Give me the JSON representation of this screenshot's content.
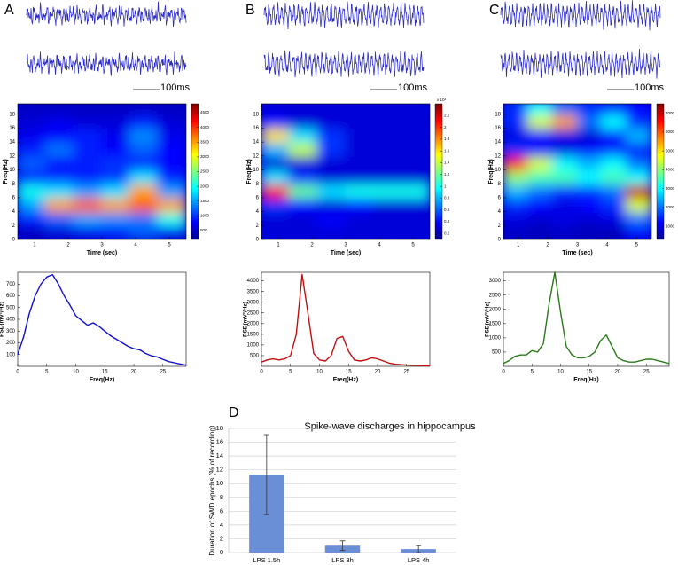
{
  "panels": [
    {
      "label": "A",
      "scale_bar": "100ms"
    },
    {
      "label": "B",
      "scale_bar": "100ms"
    },
    {
      "label": "C",
      "scale_bar": "100ms"
    },
    {
      "label": "D"
    }
  ],
  "chart_data": [
    {
      "type": "heatmap",
      "x_label": "Time (sec)",
      "y_label": "Freq(Hz)",
      "x": [
        0.92,
        1.75,
        2.58,
        3.42,
        4.25,
        5.08
      ],
      "y": [
        1,
        3,
        5,
        7,
        9,
        11,
        13,
        15,
        17,
        19
      ],
      "values": [
        [
          500,
          600,
          700,
          900,
          1200,
          700
        ],
        [
          900,
          1200,
          1500,
          1400,
          1300,
          2000
        ],
        [
          1500,
          3500,
          3800,
          3500,
          3800,
          3500
        ],
        [
          2000,
          1800,
          1500,
          1800,
          3500,
          1500
        ],
        [
          900,
          1000,
          900,
          1000,
          1800,
          900
        ],
        [
          1200,
          800,
          900,
          1000,
          900,
          800
        ],
        [
          900,
          1300,
          900,
          800,
          1200,
          800
        ],
        [
          700,
          800,
          900,
          700,
          1400,
          700
        ],
        [
          600,
          700,
          600,
          600,
          900,
          600
        ],
        [
          500,
          500,
          500,
          500,
          500,
          500
        ]
      ],
      "xlim": [
        0.5,
        5.5
      ],
      "ylim": [
        0,
        19.5
      ],
      "xticks": [
        1,
        2,
        3,
        4,
        5
      ],
      "yticks": [
        0,
        2,
        4,
        6,
        8,
        10,
        12,
        14,
        16,
        18
      ],
      "clim": [
        200,
        4800
      ],
      "cticks": [
        500,
        1000,
        1500,
        2000,
        2500,
        3000,
        3500,
        4000,
        4500
      ]
    },
    {
      "type": "line",
      "x_label": "Freq(Hz)",
      "y_label": "PSD(mV²/Hz)",
      "x": [
        0,
        1,
        2,
        3,
        4,
        5,
        6,
        7,
        8,
        9,
        10,
        11,
        12,
        13,
        14,
        15,
        16,
        17,
        18,
        19,
        20,
        21,
        22,
        23,
        24,
        25,
        26,
        27,
        28,
        29
      ],
      "series": [
        {
          "color": "#1010d0",
          "values": [
            100,
            250,
            450,
            600,
            700,
            760,
            780,
            700,
            600,
            520,
            430,
            390,
            350,
            370,
            340,
            300,
            260,
            230,
            200,
            170,
            150,
            140,
            110,
            90,
            80,
            60,
            40,
            30,
            20,
            10
          ]
        }
      ],
      "xlim": [
        0,
        29
      ],
      "ylim": [
        0,
        800
      ],
      "xticks": [
        0,
        5,
        10,
        15,
        20,
        25
      ],
      "yticks": [
        100,
        200,
        300,
        400,
        500,
        600,
        700
      ]
    },
    {
      "type": "heatmap",
      "x_label": "Time (sec)",
      "y_label": "Freq(Hz)",
      "x": [
        0.92,
        1.75,
        2.58,
        3.42,
        4.25,
        5.08
      ],
      "y": [
        1,
        3,
        5,
        7,
        9,
        11,
        13,
        15,
        17,
        19
      ],
      "values": [
        [
          0.3,
          0.3,
          0.3,
          0.3,
          0.3,
          0.3
        ],
        [
          0.3,
          0.3,
          0.4,
          0.3,
          0.3,
          0.3
        ],
        [
          0.5,
          0.4,
          0.3,
          0.4,
          0.3,
          0.3
        ],
        [
          2.1,
          1.2,
          0.9,
          1.0,
          1.0,
          1.0
        ],
        [
          0.9,
          0.5,
          0.3,
          0.3,
          0.3,
          0.3
        ],
        [
          0.3,
          0.3,
          0.3,
          0.3,
          0.3,
          0.3
        ],
        [
          0.8,
          1.4,
          0.5,
          0.3,
          0.3,
          0.3
        ],
        [
          1.6,
          0.9,
          0.5,
          0.3,
          0.3,
          0.3
        ],
        [
          0.4,
          0.3,
          0.3,
          0.3,
          0.3,
          0.3
        ],
        [
          0.3,
          0.3,
          0.3,
          0.3,
          0.3,
          0.3
        ]
      ],
      "xlim": [
        0.5,
        5.5
      ],
      "ylim": [
        0,
        19.5
      ],
      "xticks": [
        1,
        2,
        3,
        4,
        5
      ],
      "yticks": [
        0,
        2,
        4,
        6,
        8,
        10,
        12,
        14,
        16,
        18
      ],
      "clim": [
        0.1,
        2.4
      ],
      "cticks": [
        0.2,
        0.4,
        0.6,
        0.8,
        1,
        1.2,
        1.4,
        1.6,
        1.8,
        2,
        2.2
      ],
      "colorbar_label": "x 10⁴"
    },
    {
      "type": "line",
      "x_label": "Freq(Hz)",
      "y_label": "PSD(mV²/Hz)",
      "x": [
        0,
        1,
        2,
        3,
        4,
        5,
        6,
        7,
        8,
        9,
        10,
        11,
        12,
        13,
        14,
        15,
        16,
        17,
        18,
        19,
        20,
        21,
        22,
        23,
        24,
        25,
        26,
        27,
        28,
        29
      ],
      "series": [
        {
          "color": "#c01010",
          "values": [
            200,
            300,
            350,
            300,
            350,
            500,
            1500,
            4300,
            2500,
            600,
            300,
            250,
            500,
            1300,
            1400,
            700,
            300,
            250,
            300,
            400,
            350,
            250,
            150,
            100,
            80,
            60,
            50,
            40,
            30,
            20
          ]
        }
      ],
      "xlim": [
        0,
        29
      ],
      "ylim": [
        0,
        4400
      ],
      "xticks": [
        0,
        5,
        10,
        15,
        20,
        25
      ],
      "yticks": [
        500,
        1000,
        1500,
        2000,
        2500,
        3000,
        3500,
        4000
      ]
    },
    {
      "type": "heatmap",
      "x_label": "Time (sec)",
      "y_label": "Freq(Hz)",
      "x": [
        0.92,
        1.75,
        2.58,
        3.42,
        4.25,
        5.08
      ],
      "y": [
        1,
        3,
        5,
        7,
        9,
        11,
        13,
        15,
        17,
        19
      ],
      "values": [
        [
          800,
          700,
          800,
          700,
          700,
          1200
        ],
        [
          1000,
          900,
          1000,
          900,
          1000,
          2000
        ],
        [
          1500,
          1200,
          1000,
          1200,
          1500,
          4500
        ],
        [
          2500,
          2000,
          1500,
          1500,
          2000,
          7000
        ],
        [
          4000,
          3500,
          3500,
          3000,
          3500,
          3000
        ],
        [
          6500,
          4500,
          3000,
          2500,
          3000,
          2000
        ],
        [
          1500,
          1200,
          1000,
          1200,
          1500,
          1200
        ],
        [
          1000,
          1200,
          1000,
          900,
          1200,
          2500
        ],
        [
          1500,
          4500,
          5500,
          2000,
          3000,
          1500
        ],
        [
          1500,
          3000,
          2000,
          1500,
          1500,
          1200
        ]
      ],
      "xlim": [
        0.5,
        5.5
      ],
      "ylim": [
        0,
        19.5
      ],
      "xticks": [
        1,
        2,
        3,
        4,
        5
      ],
      "yticks": [
        0,
        2,
        4,
        6,
        8,
        10,
        12,
        14,
        16,
        18
      ],
      "clim": [
        300,
        7500
      ],
      "cticks": [
        1000,
        2000,
        3000,
        4000,
        5000,
        6000,
        7000
      ]
    },
    {
      "type": "line",
      "x_label": "Freq(Hz)",
      "y_label": "PSD(mV²/Hz)",
      "x": [
        0,
        1,
        2,
        3,
        4,
        5,
        6,
        7,
        8,
        9,
        10,
        11,
        12,
        13,
        14,
        15,
        16,
        17,
        18,
        19,
        20,
        21,
        22,
        23,
        24,
        25,
        26,
        27,
        28,
        29
      ],
      "series": [
        {
          "color": "#2a7a1a",
          "values": [
            100,
            200,
            350,
            400,
            400,
            550,
            500,
            800,
            2200,
            3300,
            1900,
            700,
            400,
            300,
            300,
            350,
            500,
            900,
            1100,
            700,
            300,
            200,
            150,
            150,
            200,
            250,
            250,
            200,
            150,
            100
          ]
        }
      ],
      "xlim": [
        0,
        29
      ],
      "ylim": [
        0,
        3300
      ],
      "xticks": [
        0,
        5,
        10,
        15,
        20,
        25
      ],
      "yticks": [
        500,
        1000,
        1500,
        2000,
        2500,
        3000
      ]
    },
    {
      "type": "bar",
      "title": "Spike-wave discharges in hippocampus",
      "y_label": "Duration of SWD epochs (% of recording)",
      "categories": [
        "LPS 1.5h",
        "LPS 3h",
        "LPS 4h"
      ],
      "values": [
        11.3,
        1.0,
        0.5
      ],
      "errors": [
        5.8,
        0.7,
        0.5
      ],
      "color": "#6a8fd6",
      "ylim": [
        0,
        18
      ],
      "yticks": [
        0,
        2,
        4,
        6,
        8,
        10,
        12,
        14,
        16,
        18
      ],
      "grid": true
    }
  ]
}
